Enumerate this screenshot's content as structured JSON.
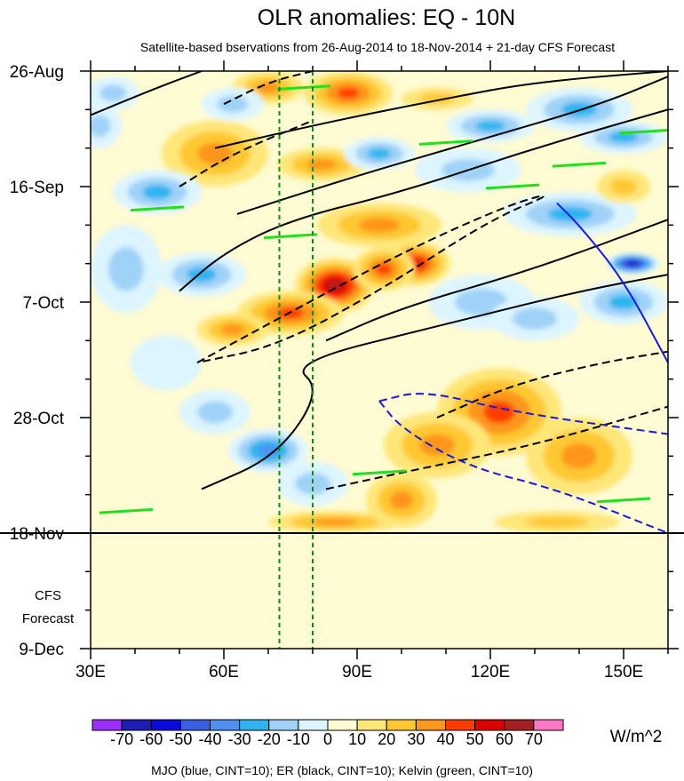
{
  "chart_data": {
    "type": "heatmap",
    "title": "OLR anomalies: EQ - 10N",
    "subtitle": "Satellite-based bservations from 26-Aug-2014 to 18-Nov-2014 + 21-day CFS Forecast",
    "x_axis": {
      "range": [
        30,
        160
      ],
      "tick_values": [
        30,
        60,
        90,
        120,
        150
      ],
      "tick_labels": [
        "30E",
        "60E",
        "90E",
        "120E",
        "150E"
      ]
    },
    "y_axis": {
      "range_days": [
        0,
        105
      ],
      "tick_days": [
        0,
        21,
        42,
        63,
        84,
        105
      ],
      "tick_labels": [
        "26-Aug",
        "16-Sep",
        "7-Oct",
        "28-Oct",
        "18-Nov",
        "9-Dec"
      ]
    },
    "forecast_label": [
      "CFS",
      "Forecast"
    ],
    "forecast_start_day": 84,
    "dashed_reference_lons": [
      72.5,
      80
    ],
    "colorbar": {
      "levels": [
        "-70",
        "-60",
        "-50",
        "-40",
        "-30",
        "-20",
        "-10",
        "0",
        "10",
        "20",
        "30",
        "40",
        "50",
        "60",
        "70"
      ],
      "colors": [
        "#9b30ff",
        "#1e1eb4",
        "#0a0adc",
        "#3a5fe0",
        "#4f8ff0",
        "#2fb4f0",
        "#a0d2f8",
        "#dcf5ff",
        "#fffbd2",
        "#ffe678",
        "#ffc832",
        "#ff961e",
        "#ff3c00",
        "#dc0000",
        "#a52020",
        "#ff78c8"
      ],
      "units": "W/m^2"
    },
    "anomaly_blobs": [
      {
        "lon": 70,
        "day": 3,
        "value": 25,
        "rlon": 8,
        "rday": 3
      },
      {
        "lon": 88,
        "day": 4,
        "value": 40,
        "rlon": 10,
        "rday": 4
      },
      {
        "lon": 108,
        "day": 5,
        "value": 20,
        "rlon": 8,
        "rday": 2
      },
      {
        "lon": 35,
        "day": 4,
        "value": -20,
        "rlon": 6,
        "rday": 3
      },
      {
        "lon": 62,
        "day": 6,
        "value": -20,
        "rlon": 7,
        "rday": 3
      },
      {
        "lon": 140,
        "day": 7,
        "value": -30,
        "rlon": 12,
        "rday": 4
      },
      {
        "lon": 120,
        "day": 10,
        "value": -25,
        "rlon": 10,
        "rday": 3
      },
      {
        "lon": 150,
        "day": 12,
        "value": -30,
        "rlon": 10,
        "rday": 3
      },
      {
        "lon": 32,
        "day": 10,
        "value": -15,
        "rlon": 5,
        "rday": 4
      },
      {
        "lon": 58,
        "day": 15,
        "value": 25,
        "rlon": 12,
        "rday": 6
      },
      {
        "lon": 82,
        "day": 17,
        "value": 25,
        "rlon": 10,
        "rday": 3
      },
      {
        "lon": 95,
        "day": 15,
        "value": -25,
        "rlon": 8,
        "rday": 3
      },
      {
        "lon": 115,
        "day": 18,
        "value": -20,
        "rlon": 12,
        "rday": 4
      },
      {
        "lon": 45,
        "day": 22,
        "value": -25,
        "rlon": 10,
        "rday": 4
      },
      {
        "lon": 138,
        "day": 26,
        "value": -25,
        "rlon": 15,
        "rday": 4
      },
      {
        "lon": 150,
        "day": 21,
        "value": 15,
        "rlon": 6,
        "rday": 3
      },
      {
        "lon": 95,
        "day": 28,
        "value": 25,
        "rlon": 14,
        "rday": 4
      },
      {
        "lon": 103,
        "day": 35,
        "value": 45,
        "rlon": 8,
        "rday": 4
      },
      {
        "lon": 85,
        "day": 39,
        "value": 55,
        "rlon": 9,
        "rday": 5
      },
      {
        "lon": 96,
        "day": 36,
        "value": 40,
        "rlon": 7,
        "rday": 4
      },
      {
        "lon": 75,
        "day": 44,
        "value": 35,
        "rlon": 12,
        "rday": 4
      },
      {
        "lon": 62,
        "day": 47,
        "value": 25,
        "rlon": 8,
        "rday": 3
      },
      {
        "lon": 38,
        "day": 36,
        "value": -20,
        "rlon": 8,
        "rday": 8
      },
      {
        "lon": 55,
        "day": 37,
        "value": -30,
        "rlon": 10,
        "rday": 4
      },
      {
        "lon": 118,
        "day": 42,
        "value": -15,
        "rlon": 12,
        "rday": 5
      },
      {
        "lon": 152,
        "day": 35,
        "value": -65,
        "rlon": 6,
        "rday": 2
      },
      {
        "lon": 150,
        "day": 42,
        "value": -30,
        "rlon": 10,
        "rday": 4
      },
      {
        "lon": 130,
        "day": 45,
        "value": -15,
        "rlon": 10,
        "rday": 4
      },
      {
        "lon": 122,
        "day": 62,
        "value": 40,
        "rlon": 14,
        "rday": 8
      },
      {
        "lon": 108,
        "day": 68,
        "value": 30,
        "rlon": 12,
        "rday": 6
      },
      {
        "lon": 140,
        "day": 70,
        "value": 25,
        "rlon": 12,
        "rday": 7
      },
      {
        "lon": 100,
        "day": 78,
        "value": 25,
        "rlon": 8,
        "rday": 5
      },
      {
        "lon": 70,
        "day": 69,
        "value": -35,
        "rlon": 9,
        "rday": 4
      },
      {
        "lon": 58,
        "day": 62,
        "value": -20,
        "rlon": 8,
        "rday": 4
      },
      {
        "lon": 47,
        "day": 53,
        "value": -10,
        "rlon": 8,
        "rday": 5
      },
      {
        "lon": 80,
        "day": 75,
        "value": -15,
        "rlon": 8,
        "rday": 4
      },
      {
        "lon": 85,
        "day": 82,
        "value": 25,
        "rlon": 15,
        "rday": 2
      },
      {
        "lon": 135,
        "day": 82,
        "value": 20,
        "rlon": 14,
        "rday": 2
      }
    ],
    "contours": [
      {
        "name": "er-positive",
        "style": "solid",
        "color": "#000000",
        "points": [
          [
            30,
            8
          ],
          [
            45,
            3
          ],
          [
            55,
            0
          ]
        ]
      },
      {
        "name": "er-positive",
        "style": "solid",
        "color": "#000000",
        "points": [
          [
            58,
            14
          ],
          [
            85,
            9
          ],
          [
            110,
            5
          ],
          [
            130,
            2
          ],
          [
            160,
            0
          ]
        ]
      },
      {
        "name": "er-positive",
        "style": "solid",
        "color": "#000000",
        "points": [
          [
            63,
            26
          ],
          [
            90,
            19
          ],
          [
            120,
            12
          ],
          [
            145,
            6
          ],
          [
            160,
            1
          ]
        ]
      },
      {
        "name": "er-positive",
        "style": "solid",
        "color": "#000000",
        "points": [
          [
            50,
            40
          ],
          [
            60,
            33
          ],
          [
            75,
            27
          ],
          [
            100,
            22
          ],
          [
            130,
            14
          ],
          [
            160,
            7
          ]
        ]
      },
      {
        "name": "er-positive",
        "style": "solid",
        "color": "#000000",
        "points": [
          [
            83,
            49
          ],
          [
            100,
            43
          ],
          [
            130,
            36
          ],
          [
            160,
            27
          ]
        ]
      },
      {
        "name": "er-positive",
        "style": "solid",
        "color": "#000000",
        "points": [
          [
            55,
            76
          ],
          [
            72,
            70
          ],
          [
            82,
            58
          ],
          [
            75,
            53
          ],
          [
            110,
            46
          ],
          [
            140,
            40
          ],
          [
            160,
            37
          ]
        ]
      },
      {
        "name": "er-negative",
        "style": "dashed",
        "color": "#000000",
        "points": [
          [
            60,
            6
          ],
          [
            70,
            2
          ],
          [
            80,
            0
          ]
        ]
      },
      {
        "name": "er-negative",
        "style": "dashed",
        "color": "#000000",
        "points": [
          [
            50,
            21
          ],
          [
            62,
            15
          ],
          [
            80,
            9
          ]
        ]
      },
      {
        "name": "er-negative",
        "style": "dashed",
        "color": "#000000",
        "points": [
          [
            54,
            53
          ],
          [
            70,
            46
          ],
          [
            100,
            33
          ],
          [
            125,
            24
          ],
          [
            135,
            22
          ],
          [
            120,
            27
          ],
          [
            95,
            40
          ],
          [
            72,
            50
          ],
          [
            54,
            53
          ]
        ]
      },
      {
        "name": "er-negative",
        "style": "dashed",
        "color": "#000000",
        "points": [
          [
            83,
            76
          ],
          [
            100,
            73
          ],
          [
            130,
            68
          ],
          [
            160,
            61
          ]
        ]
      },
      {
        "name": "er-negative",
        "style": "dashed",
        "color": "#000000",
        "points": [
          [
            108,
            63
          ],
          [
            125,
            57
          ],
          [
            145,
            53
          ],
          [
            160,
            51
          ]
        ]
      },
      {
        "name": "mjo-positive",
        "style": "solid",
        "color": "#1a1ad6",
        "points": [
          [
            135,
            24
          ],
          [
            140,
            28
          ],
          [
            150,
            38
          ],
          [
            160,
            53
          ]
        ]
      },
      {
        "name": "mjo-negative",
        "style": "dashed",
        "color": "#1a1ad6",
        "points": [
          [
            95,
            60
          ],
          [
            105,
            58
          ],
          [
            125,
            62
          ],
          [
            160,
            66
          ]
        ]
      },
      {
        "name": "mjo-negative",
        "style": "dashed",
        "color": "#1a1ad6",
        "points": [
          [
            95,
            60
          ],
          [
            100,
            65
          ],
          [
            115,
            72
          ],
          [
            135,
            76
          ],
          [
            160,
            84
          ]
        ]
      }
    ],
    "kelvin_streaks": [
      {
        "lon": 78,
        "day": 3
      },
      {
        "lon": 110,
        "day": 13
      },
      {
        "lon": 155,
        "day": 11
      },
      {
        "lon": 45,
        "day": 25
      },
      {
        "lon": 75,
        "day": 30
      },
      {
        "lon": 140,
        "day": 17
      },
      {
        "lon": 125,
        "day": 21
      },
      {
        "lon": 95,
        "day": 73
      },
      {
        "lon": 150,
        "day": 78
      },
      {
        "lon": 38,
        "day": 80
      }
    ]
  },
  "caption": "MJO (blue, CINT=10); ER (black, CINT=10); Kelvin (green, CINT=10)"
}
